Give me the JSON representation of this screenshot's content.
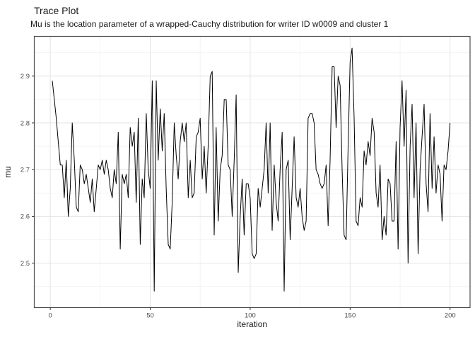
{
  "page": {
    "background": "#ffffff"
  },
  "chart_data": {
    "type": "line",
    "title": "Trace Plot",
    "subtitle": "Mu is the location parameter of a wrapped-Cauchy distribution for writer ID w0009 and cluster 1",
    "xlabel": "iteration",
    "ylabel": "mu",
    "x_description": "iteration index 1..200, one value per MCMC iteration",
    "values": [
      2.89,
      2.85,
      2.81,
      2.76,
      2.71,
      2.71,
      2.64,
      2.72,
      2.6,
      2.66,
      2.8,
      2.72,
      2.62,
      2.61,
      2.71,
      2.7,
      2.67,
      2.69,
      2.66,
      2.63,
      2.68,
      2.61,
      2.66,
      2.71,
      2.7,
      2.72,
      2.69,
      2.72,
      2.7,
      2.66,
      2.64,
      2.7,
      2.67,
      2.78,
      2.53,
      2.69,
      2.67,
      2.69,
      2.64,
      2.79,
      2.75,
      2.78,
      2.63,
      2.81,
      2.54,
      2.68,
      2.64,
      2.82,
      2.7,
      2.66,
      2.89,
      2.44,
      2.89,
      2.72,
      2.83,
      2.74,
      2.82,
      2.66,
      2.54,
      2.53,
      2.63,
      2.8,
      2.73,
      2.68,
      2.76,
      2.8,
      2.76,
      2.8,
      2.64,
      2.72,
      2.64,
      2.65,
      2.77,
      2.78,
      2.81,
      2.68,
      2.75,
      2.65,
      2.75,
      2.9,
      2.91,
      2.56,
      2.79,
      2.59,
      2.7,
      2.73,
      2.85,
      2.85,
      2.71,
      2.7,
      2.6,
      2.72,
      2.86,
      2.48,
      2.6,
      2.68,
      2.56,
      2.67,
      2.67,
      2.64,
      2.52,
      2.51,
      2.52,
      2.66,
      2.62,
      2.66,
      2.7,
      2.8,
      2.65,
      2.8,
      2.57,
      2.71,
      2.63,
      2.59,
      2.7,
      2.78,
      2.44,
      2.7,
      2.72,
      2.55,
      2.66,
      2.77,
      2.64,
      2.62,
      2.66,
      2.6,
      2.57,
      2.59,
      2.81,
      2.82,
      2.82,
      2.8,
      2.7,
      2.69,
      2.67,
      2.66,
      2.67,
      2.71,
      2.58,
      2.72,
      2.92,
      2.92,
      2.79,
      2.9,
      2.88,
      2.7,
      2.56,
      2.55,
      2.75,
      2.93,
      2.96,
      2.81,
      2.59,
      2.58,
      2.64,
      2.62,
      2.74,
      2.71,
      2.76,
      2.73,
      2.81,
      2.78,
      2.65,
      2.62,
      2.71,
      2.55,
      2.6,
      2.56,
      2.68,
      2.67,
      2.59,
      2.59,
      2.76,
      2.53,
      2.79,
      2.89,
      2.75,
      2.87,
      2.5,
      2.75,
      2.84,
      2.64,
      2.8,
      2.52,
      2.7,
      2.77,
      2.84,
      2.67,
      2.61,
      2.82,
      2.66,
      2.77,
      2.65,
      2.71,
      2.69,
      2.59,
      2.71,
      2.7,
      2.74,
      2.8
    ],
    "xlim": [
      -8,
      210
    ],
    "ylim": [
      2.405,
      2.985
    ],
    "x_ticks_major": [
      0,
      50,
      100,
      150,
      200
    ],
    "x_ticks_minor": [
      25,
      75,
      125,
      175
    ],
    "y_ticks_major": [
      2.5,
      2.6,
      2.7,
      2.8,
      2.9
    ],
    "y_ticks_minor": [
      2.45,
      2.55,
      2.65,
      2.75,
      2.85,
      2.95
    ],
    "grid": true,
    "legend_position": "none",
    "line_color": "#000000",
    "colors": {
      "grid_major": "#e4e4e4",
      "grid_minor": "#f1f1f1",
      "panel_border": "#4d4d4d",
      "tick_mark": "#333333",
      "tick_label": "#4d4d4d",
      "text": "#1a1a1a"
    }
  }
}
